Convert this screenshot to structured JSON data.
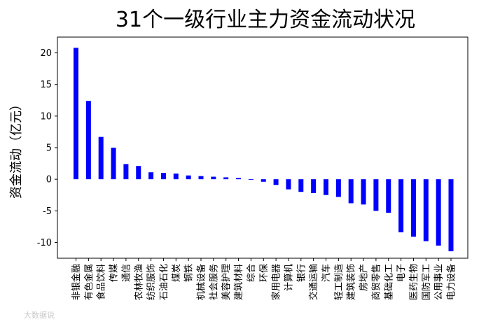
{
  "chart_data": {
    "type": "bar",
    "title": "31个一级行业主力资金流动状况",
    "ylabel": "资金流动（亿元）",
    "xlabel": "",
    "ylim": [
      -12.5,
      22.5
    ],
    "yticks": [
      20,
      15,
      10,
      5,
      0,
      -5,
      -10
    ],
    "bar_color": "#0000ff",
    "grid": false,
    "categories": [
      "非银金融",
      "有色金属",
      "食品饮料",
      "传媒",
      "通信",
      "农林牧渔",
      "纺织服饰",
      "石油石化",
      "煤炭",
      "钢铁",
      "机械设备",
      "社会服务",
      "美容护理",
      "建筑材料",
      "综合",
      "环保",
      "家用电器",
      "计算机",
      "银行",
      "交通运输",
      "汽车",
      "轻工制造",
      "建筑装饰",
      "房地产",
      "商贸零售",
      "基础化工",
      "电子",
      "医药生物",
      "国防军工",
      "公用事业",
      "电力设备"
    ],
    "values": [
      20.8,
      12.4,
      6.7,
      5.0,
      2.4,
      2.1,
      1.1,
      1.0,
      0.9,
      0.6,
      0.5,
      0.4,
      0.3,
      0.2,
      -0.1,
      -0.4,
      -0.9,
      -1.6,
      -2.0,
      -2.2,
      -2.5,
      -2.8,
      -3.8,
      -4.0,
      -5.0,
      -5.3,
      -8.4,
      -9.1,
      -9.8,
      -10.5,
      -11.4
    ]
  },
  "watermark": "大数据说"
}
